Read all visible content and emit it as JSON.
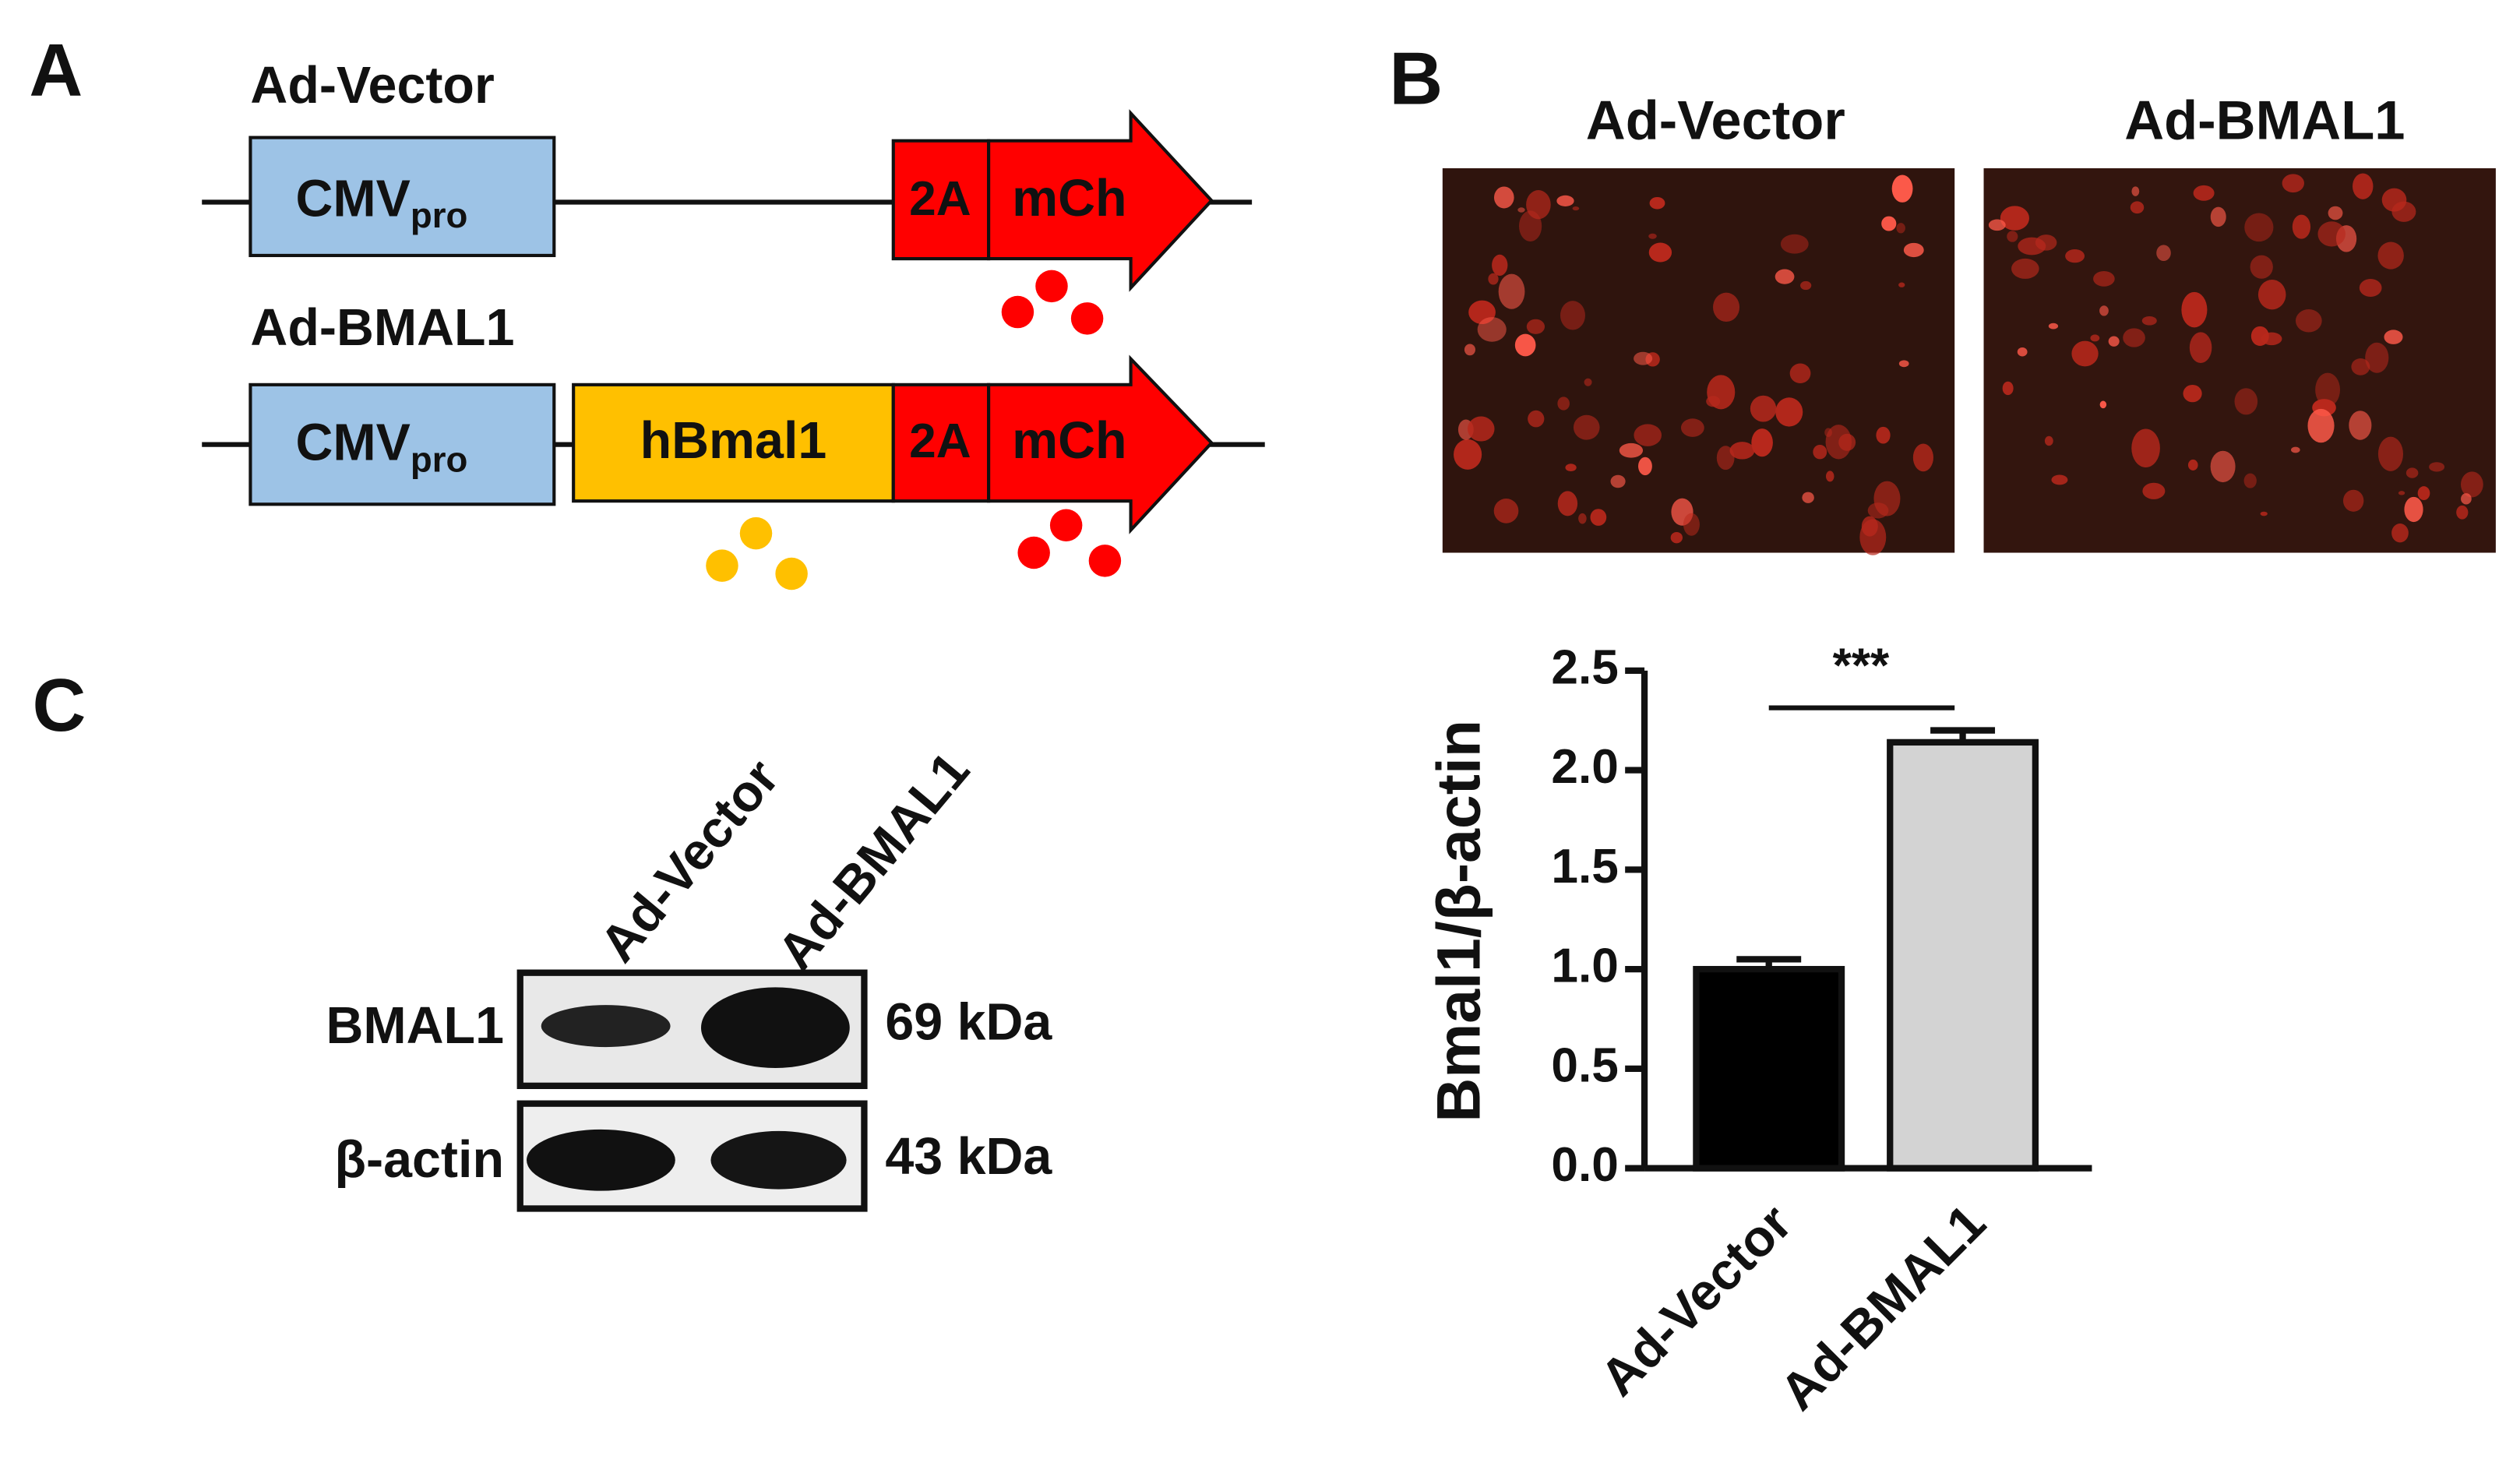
{
  "panels": {
    "a": "A",
    "b": "B",
    "c": "C"
  },
  "constructs": [
    {
      "name": "Ad-Vector",
      "promoter": "CMV",
      "promoter_sub": "pro",
      "linker": "2A",
      "reporter": "mCh"
    },
    {
      "name": "Ad-BMAL1",
      "promoter": "CMV",
      "promoter_sub": "pro",
      "gene": "hBmal1",
      "linker": "2A",
      "reporter": "mCh"
    }
  ],
  "images": {
    "titles": [
      "Ad-Vector",
      "Ad-BMAL1"
    ]
  },
  "blot": {
    "lanes": [
      "Ad-Vector",
      "Ad-BMAL1"
    ],
    "rows": [
      {
        "label": "BMAL1",
        "size": "69 kDa"
      },
      {
        "label": "β-actin",
        "size": "43 kDa"
      }
    ]
  },
  "chart_data": {
    "type": "bar",
    "y_label": "Bmal1/β-actin",
    "categories": [
      "Ad-Vector",
      "Ad-BMAL1"
    ],
    "values": [
      1.0,
      2.14
    ],
    "errors": [
      0.05,
      0.06
    ],
    "colors": [
      "#000000",
      "#d3d3d3"
    ],
    "ylim": [
      0,
      2.5
    ],
    "yticks": [
      {
        "value": 0,
        "label": "0.0"
      },
      0.5,
      {
        "value": 1,
        "label": "1.0"
      },
      1.5,
      {
        "value": 2,
        "label": "2.0"
      },
      2.5
    ],
    "annotation": "***"
  }
}
